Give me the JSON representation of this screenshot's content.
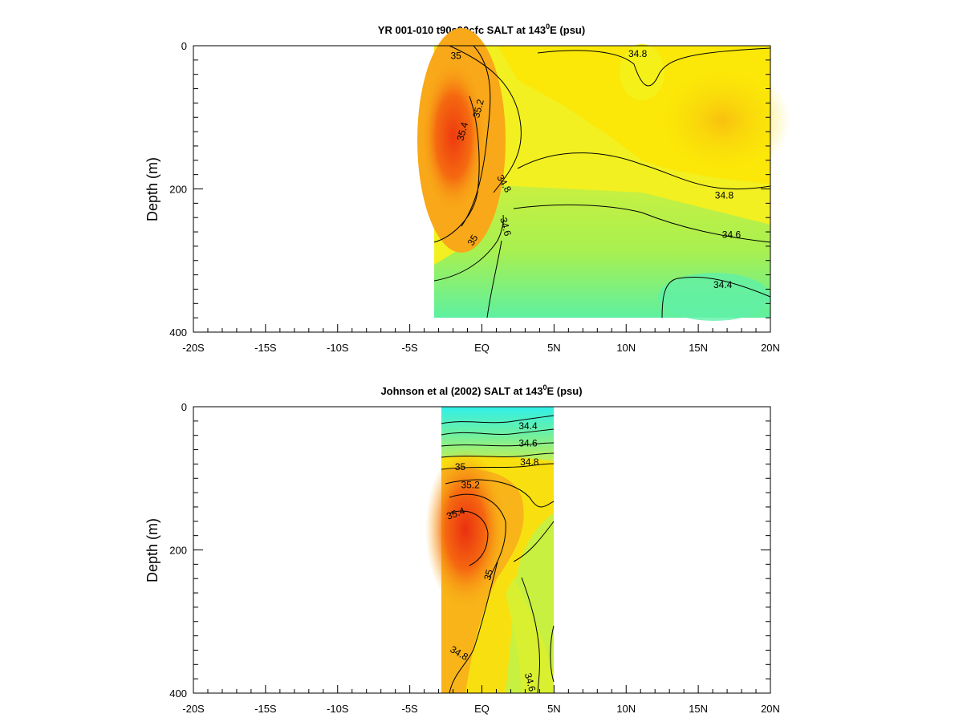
{
  "chart_data": [
    {
      "type": "heatmap",
      "title_main": "YR 001-010 t90s90cfc SALT at 143",
      "title_sup": "0",
      "title_tail": "E (psu)",
      "ylabel": "Depth (m)",
      "xlim": [
        -20,
        20
      ],
      "ylim": [
        0,
        400
      ],
      "y_inverted": true,
      "x_ticks": [
        -20,
        -15,
        -10,
        -5,
        0,
        5,
        10,
        15,
        20
      ],
      "x_tick_labels": [
        "-20S",
        "-15S",
        "-10S",
        "-5S",
        "EQ",
        "5N",
        "10N",
        "15N",
        "20N"
      ],
      "y_ticks": [
        0,
        200,
        400
      ],
      "y_tick_labels": [
        "0",
        "200",
        "400"
      ],
      "data_extent": {
        "lat": [
          -3.3,
          20
        ],
        "depth": [
          0,
          380
        ]
      },
      "contour_labels": [
        {
          "text": "35",
          "lat": -1.8,
          "depth": 15,
          "angle": 0
        },
        {
          "text": "34.8",
          "lat": 10.8,
          "depth": 12,
          "angle": 0
        },
        {
          "text": "35.2",
          "lat": -0.2,
          "depth": 88,
          "angle": -75
        },
        {
          "text": "35.4",
          "lat": -1.3,
          "depth": 120,
          "angle": -75
        },
        {
          "text": "34.8",
          "lat": 1.5,
          "depth": 193,
          "angle": 60
        },
        {
          "text": "34.8",
          "lat": 16.8,
          "depth": 210,
          "angle": 0
        },
        {
          "text": "34.6",
          "lat": 1.6,
          "depth": 253,
          "angle": 75
        },
        {
          "text": "35",
          "lat": -0.6,
          "depth": 272,
          "angle": -60
        },
        {
          "text": "34.6",
          "lat": 17.3,
          "depth": 265,
          "angle": 0
        },
        {
          "text": "34.4",
          "lat": 16.7,
          "depth": 335,
          "angle": 0
        }
      ]
    },
    {
      "type": "heatmap",
      "title_main": "Johnson et al (2002) SALT at 143",
      "title_sup": "0",
      "title_tail": "E (psu)",
      "ylabel": "Depth (m)",
      "xlim": [
        -20,
        20
      ],
      "ylim": [
        0,
        400
      ],
      "y_inverted": true,
      "x_ticks": [
        -20,
        -15,
        -10,
        -5,
        0,
        5,
        10,
        15,
        20
      ],
      "x_tick_labels": [
        "-20S",
        "-15S",
        "-10S",
        "-5S",
        "EQ",
        "5N",
        "10N",
        "15N",
        "20N"
      ],
      "y_ticks": [
        0,
        200,
        400
      ],
      "y_tick_labels": [
        "0",
        "200",
        "400"
      ],
      "data_extent": {
        "lat": [
          -2.8,
          5
        ],
        "depth": [
          0,
          400
        ]
      },
      "contour_labels": [
        {
          "text": "34.4",
          "lat": 3.2,
          "depth": 28,
          "angle": 0
        },
        {
          "text": "34.6",
          "lat": 3.2,
          "depth": 52,
          "angle": 0
        },
        {
          "text": "34.8",
          "lat": 3.3,
          "depth": 78,
          "angle": 0
        },
        {
          "text": "35",
          "lat": -1.5,
          "depth": 85,
          "angle": 0
        },
        {
          "text": "35.2",
          "lat": -0.8,
          "depth": 110,
          "angle": 0
        },
        {
          "text": "35.4",
          "lat": -1.8,
          "depth": 150,
          "angle": -20
        },
        {
          "text": "35",
          "lat": 0.5,
          "depth": 235,
          "angle": -75
        },
        {
          "text": "34.8",
          "lat": -1.6,
          "depth": 345,
          "angle": 30
        },
        {
          "text": "34.6",
          "lat": 3.3,
          "depth": 385,
          "angle": 75
        }
      ]
    }
  ]
}
